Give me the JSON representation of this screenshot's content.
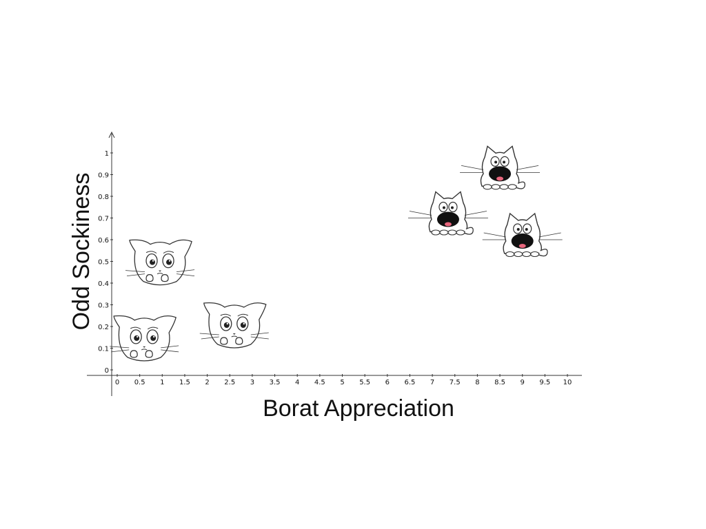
{
  "chart_data": {
    "type": "scatter",
    "xlabel": "Borat Appreciation",
    "ylabel": "Odd Sockiness",
    "xlim": [
      0,
      10
    ],
    "ylim": [
      0,
      1
    ],
    "x_ticks": [
      "0",
      "0.5",
      "1",
      "1.5",
      "2",
      "2.5",
      "3",
      "3.5",
      "4",
      "4.5",
      "5",
      "5.5",
      "6",
      "6.5",
      "7",
      "7.5",
      "8",
      "8.5",
      "9",
      "9.5",
      "10"
    ],
    "y_ticks": [
      "0",
      "0.1",
      "0.2",
      "0.3",
      "0.4",
      "0.5",
      "0.6",
      "0.7",
      "0.8",
      "0.9",
      "1"
    ],
    "grid": false,
    "legend": "none",
    "marker_style": "cartoon cat faces",
    "series": [
      {
        "marker": "sad-cat",
        "points": [
          {
            "x": 0.6,
            "y": 0.14
          },
          {
            "x": 0.95,
            "y": 0.49
          },
          {
            "x": 2.6,
            "y": 0.2
          }
        ]
      },
      {
        "marker": "laughing-cat",
        "points": [
          {
            "x": 7.35,
            "y": 0.7
          },
          {
            "x": 8.5,
            "y": 0.91
          },
          {
            "x": 9,
            "y": 0.6
          }
        ]
      }
    ]
  },
  "colors": {
    "axis": "#333333",
    "text": "#111111",
    "cat_outline": "#333333",
    "cat_fill": "#ffffff",
    "laughing_mouth": "#111111",
    "tongue": "#e8667d"
  }
}
